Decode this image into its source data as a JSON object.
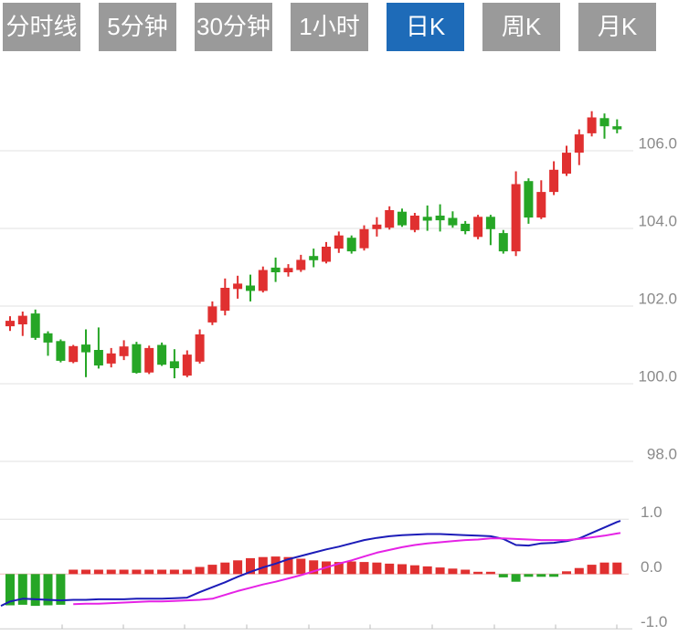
{
  "toolbar": {
    "text_color": "#ffffff",
    "active_bg": "#1e6bb8",
    "inactive_bg": "#9a9a9a",
    "tabs": [
      {
        "id": "time-line",
        "label": "分时线",
        "active": false
      },
      {
        "id": "5-min",
        "label": "5分钟",
        "active": false
      },
      {
        "id": "30-min",
        "label": "30分钟",
        "active": false
      },
      {
        "id": "1-hour",
        "label": "1小时",
        "active": false
      },
      {
        "id": "day-k",
        "label": "日K",
        "active": true
      },
      {
        "id": "week-k",
        "label": "周K",
        "active": false
      },
      {
        "id": "month-k",
        "label": "月K",
        "active": false
      }
    ]
  },
  "chart_data": {
    "type": "candlestick_with_macd",
    "up_color": "#e03030",
    "down_color": "#26a626",
    "dif_color": "#1c1cb8",
    "dea_color": "#e522e5",
    "grid_color": "#e0e0e0",
    "label_color": "#8a8a8a",
    "zero_line_color": "#f0bcbc",
    "price_axis": {
      "ticks": [
        106.0,
        104.0,
        102.0,
        100.0,
        98.0
      ],
      "labels": [
        "106.0",
        "104.0",
        "102.0",
        "100.0",
        "98.0"
      ]
    },
    "macd_axis": {
      "ticks": [
        1.0,
        0.0,
        -1.0
      ],
      "labels": [
        "1.0",
        "0.0",
        "-1.0"
      ]
    },
    "candles": [
      {
        "o": 101.48,
        "h": 101.74,
        "l": 101.36,
        "c": 101.62
      },
      {
        "o": 101.53,
        "h": 101.86,
        "l": 101.23,
        "c": 101.75
      },
      {
        "o": 101.81,
        "h": 101.91,
        "l": 101.13,
        "c": 101.18
      },
      {
        "o": 101.3,
        "h": 101.35,
        "l": 100.72,
        "c": 101.06
      },
      {
        "o": 101.1,
        "h": 101.14,
        "l": 100.55,
        "c": 100.59
      },
      {
        "o": 100.56,
        "h": 101.0,
        "l": 100.53,
        "c": 100.97
      },
      {
        "o": 101.01,
        "h": 101.4,
        "l": 100.17,
        "c": 100.81
      },
      {
        "o": 100.87,
        "h": 101.45,
        "l": 100.39,
        "c": 100.47
      },
      {
        "o": 100.52,
        "h": 100.92,
        "l": 100.42,
        "c": 100.78
      },
      {
        "o": 100.71,
        "h": 101.12,
        "l": 100.61,
        "c": 100.96
      },
      {
        "o": 101.02,
        "h": 101.08,
        "l": 100.26,
        "c": 100.28
      },
      {
        "o": 100.29,
        "h": 100.98,
        "l": 100.25,
        "c": 100.92
      },
      {
        "o": 101.0,
        "h": 101.06,
        "l": 100.46,
        "c": 100.49
      },
      {
        "o": 100.58,
        "h": 100.89,
        "l": 100.14,
        "c": 100.4
      },
      {
        "o": 100.21,
        "h": 100.86,
        "l": 100.17,
        "c": 100.75
      },
      {
        "o": 100.57,
        "h": 101.4,
        "l": 100.52,
        "c": 101.27
      },
      {
        "o": 101.58,
        "h": 102.12,
        "l": 101.51,
        "c": 101.99
      },
      {
        "o": 101.88,
        "h": 102.71,
        "l": 101.76,
        "c": 102.47
      },
      {
        "o": 102.44,
        "h": 102.78,
        "l": 102.19,
        "c": 102.58
      },
      {
        "o": 102.53,
        "h": 102.81,
        "l": 102.12,
        "c": 102.39
      },
      {
        "o": 102.39,
        "h": 103.02,
        "l": 102.35,
        "c": 102.93
      },
      {
        "o": 102.99,
        "h": 103.25,
        "l": 102.62,
        "c": 102.87
      },
      {
        "o": 102.87,
        "h": 103.08,
        "l": 102.76,
        "c": 102.98
      },
      {
        "o": 102.93,
        "h": 103.32,
        "l": 102.88,
        "c": 103.19
      },
      {
        "o": 103.29,
        "h": 103.48,
        "l": 103.0,
        "c": 103.18
      },
      {
        "o": 103.14,
        "h": 103.65,
        "l": 103.1,
        "c": 103.53
      },
      {
        "o": 103.48,
        "h": 103.92,
        "l": 103.37,
        "c": 103.82
      },
      {
        "o": 103.76,
        "h": 103.82,
        "l": 103.35,
        "c": 103.41
      },
      {
        "o": 103.49,
        "h": 104.08,
        "l": 103.43,
        "c": 103.98
      },
      {
        "o": 103.98,
        "h": 104.29,
        "l": 103.79,
        "c": 104.1
      },
      {
        "o": 104.02,
        "h": 104.57,
        "l": 103.97,
        "c": 104.47
      },
      {
        "o": 104.43,
        "h": 104.51,
        "l": 104.04,
        "c": 104.08
      },
      {
        "o": 103.96,
        "h": 104.4,
        "l": 103.9,
        "c": 104.33
      },
      {
        "o": 104.3,
        "h": 104.59,
        "l": 103.94,
        "c": 104.2
      },
      {
        "o": 104.33,
        "h": 104.62,
        "l": 103.92,
        "c": 104.21
      },
      {
        "o": 104.27,
        "h": 104.44,
        "l": 104.02,
        "c": 104.08
      },
      {
        "o": 104.12,
        "h": 104.19,
        "l": 103.85,
        "c": 103.93
      },
      {
        "o": 103.78,
        "h": 104.35,
        "l": 103.72,
        "c": 104.3
      },
      {
        "o": 104.3,
        "h": 104.35,
        "l": 103.57,
        "c": 103.98
      },
      {
        "o": 103.88,
        "h": 103.96,
        "l": 103.35,
        "c": 103.41
      },
      {
        "o": 103.41,
        "h": 105.47,
        "l": 103.29,
        "c": 105.14
      },
      {
        "o": 105.22,
        "h": 105.29,
        "l": 104.12,
        "c": 104.28
      },
      {
        "o": 104.28,
        "h": 105.24,
        "l": 104.24,
        "c": 104.94
      },
      {
        "o": 104.94,
        "h": 105.73,
        "l": 104.86,
        "c": 105.51
      },
      {
        "o": 105.41,
        "h": 106.13,
        "l": 105.35,
        "c": 105.95
      },
      {
        "o": 105.95,
        "h": 106.55,
        "l": 105.63,
        "c": 106.42
      },
      {
        "o": 106.45,
        "h": 107.02,
        "l": 106.37,
        "c": 106.86
      },
      {
        "o": 106.84,
        "h": 106.96,
        "l": 106.31,
        "c": 106.63
      },
      {
        "o": 106.63,
        "h": 106.81,
        "l": 106.45,
        "c": 106.55
      }
    ],
    "macd_hist": [
      -0.57,
      -0.56,
      -0.58,
      -0.57,
      -0.56,
      0.08,
      0.08,
      0.08,
      0.08,
      0.08,
      0.08,
      0.08,
      0.08,
      0.08,
      0.08,
      0.13,
      0.17,
      0.21,
      0.25,
      0.29,
      0.31,
      0.32,
      0.31,
      0.28,
      0.25,
      0.23,
      0.22,
      0.23,
      0.22,
      0.21,
      0.19,
      0.18,
      0.16,
      0.14,
      0.12,
      0.1,
      0.08,
      0.04,
      0.03,
      -0.06,
      -0.14,
      -0.05,
      -0.05,
      -0.05,
      0.05,
      0.11,
      0.17,
      0.21,
      0.21
    ],
    "dif": [
      -0.5,
      -0.45,
      -0.46,
      -0.47,
      -0.48,
      -0.47,
      -0.47,
      -0.46,
      -0.46,
      -0.46,
      -0.45,
      -0.45,
      -0.45,
      -0.44,
      -0.43,
      -0.33,
      -0.24,
      -0.15,
      -0.05,
      0.04,
      0.12,
      0.19,
      0.27,
      0.33,
      0.39,
      0.45,
      0.5,
      0.56,
      0.62,
      0.66,
      0.69,
      0.71,
      0.72,
      0.73,
      0.73,
      0.72,
      0.71,
      0.7,
      0.69,
      0.64,
      0.53,
      0.52,
      0.56,
      0.57,
      0.6,
      0.65,
      0.75,
      0.85,
      0.95
    ],
    "dif_start": -0.58,
    "dif_end": 0.97,
    "dea": [
      null,
      null,
      null,
      null,
      null,
      -0.55,
      -0.54,
      -0.54,
      -0.53,
      -0.52,
      -0.51,
      -0.5,
      -0.5,
      -0.49,
      -0.48,
      -0.47,
      -0.45,
      -0.38,
      -0.31,
      -0.25,
      -0.19,
      -0.14,
      -0.08,
      -0.02,
      0.05,
      0.12,
      0.19,
      0.25,
      0.32,
      0.39,
      0.44,
      0.49,
      0.53,
      0.56,
      0.58,
      0.6,
      0.62,
      0.63,
      0.65,
      0.65,
      0.64,
      0.63,
      0.62,
      0.62,
      0.62,
      0.64,
      0.67,
      0.7,
      0.74
    ],
    "dea_end": 0.75
  }
}
